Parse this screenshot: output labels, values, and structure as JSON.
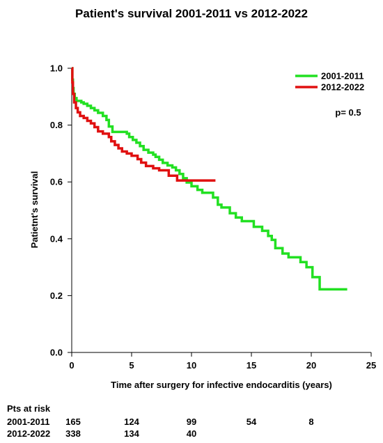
{
  "chart_data": {
    "type": "line",
    "title": "Patient's survival 2001-2011 vs 2012-2022",
    "xlabel": "Time after surgery for infective endocarditis (years)",
    "ylabel": "Patietnt's survival",
    "xlim": [
      0,
      25
    ],
    "ylim": [
      0,
      1.0
    ],
    "xticks": [
      "0",
      "5",
      "10",
      "15",
      "20",
      "25"
    ],
    "yticks": [
      "0.0",
      "0.2",
      "0.4",
      "0.6",
      "0.8",
      "1.0"
    ],
    "grid": false,
    "legend_position": "top-right",
    "annotation": "p= 0.5",
    "series": [
      {
        "name": "2001-2011",
        "color": "#22e022",
        "points": [
          [
            0,
            1.0
          ],
          [
            0.05,
            0.96
          ],
          [
            0.1,
            0.93
          ],
          [
            0.15,
            0.91
          ],
          [
            0.25,
            0.895
          ],
          [
            0.4,
            0.885
          ],
          [
            0.8,
            0.88
          ],
          [
            1.0,
            0.875
          ],
          [
            1.3,
            0.868
          ],
          [
            1.6,
            0.86
          ],
          [
            1.9,
            0.852
          ],
          [
            2.2,
            0.843
          ],
          [
            2.6,
            0.832
          ],
          [
            2.9,
            0.818
          ],
          [
            3.1,
            0.795
          ],
          [
            3.4,
            0.776
          ],
          [
            4.3,
            0.776
          ],
          [
            4.6,
            0.77
          ],
          [
            4.8,
            0.758
          ],
          [
            5.1,
            0.748
          ],
          [
            5.4,
            0.738
          ],
          [
            5.7,
            0.726
          ],
          [
            6.0,
            0.713
          ],
          [
            6.4,
            0.703
          ],
          [
            6.8,
            0.696
          ],
          [
            7.0,
            0.688
          ],
          [
            7.3,
            0.678
          ],
          [
            7.6,
            0.667
          ],
          [
            8.0,
            0.658
          ],
          [
            8.4,
            0.651
          ],
          [
            8.7,
            0.641
          ],
          [
            9.0,
            0.628
          ],
          [
            9.3,
            0.613
          ],
          [
            9.6,
            0.598
          ],
          [
            10.0,
            0.585
          ],
          [
            10.5,
            0.572
          ],
          [
            10.9,
            0.562
          ],
          [
            11.8,
            0.545
          ],
          [
            12.2,
            0.52
          ],
          [
            12.5,
            0.51
          ],
          [
            13.2,
            0.49
          ],
          [
            13.7,
            0.475
          ],
          [
            14.2,
            0.462
          ],
          [
            15.2,
            0.442
          ],
          [
            15.9,
            0.428
          ],
          [
            16.4,
            0.41
          ],
          [
            16.7,
            0.396
          ],
          [
            17.0,
            0.367
          ],
          [
            17.6,
            0.348
          ],
          [
            18.1,
            0.335
          ],
          [
            19.1,
            0.318
          ],
          [
            19.6,
            0.3
          ],
          [
            20.1,
            0.265
          ],
          [
            20.7,
            0.222
          ],
          [
            23.0,
            0.222
          ]
        ]
      },
      {
        "name": "2012-2022",
        "color": "#e01010",
        "points": [
          [
            0,
            1.0
          ],
          [
            0.05,
            0.95
          ],
          [
            0.1,
            0.91
          ],
          [
            0.2,
            0.88
          ],
          [
            0.35,
            0.86
          ],
          [
            0.5,
            0.845
          ],
          [
            0.7,
            0.832
          ],
          [
            1.0,
            0.825
          ],
          [
            1.3,
            0.815
          ],
          [
            1.6,
            0.806
          ],
          [
            1.9,
            0.793
          ],
          [
            2.2,
            0.778
          ],
          [
            2.6,
            0.77
          ],
          [
            3.1,
            0.758
          ],
          [
            3.3,
            0.743
          ],
          [
            3.6,
            0.73
          ],
          [
            3.9,
            0.718
          ],
          [
            4.2,
            0.707
          ],
          [
            4.6,
            0.7
          ],
          [
            5.0,
            0.692
          ],
          [
            5.5,
            0.68
          ],
          [
            5.8,
            0.668
          ],
          [
            6.2,
            0.656
          ],
          [
            6.8,
            0.648
          ],
          [
            7.3,
            0.641
          ],
          [
            8.1,
            0.622
          ],
          [
            8.8,
            0.605
          ],
          [
            12.0,
            0.605
          ]
        ]
      }
    ],
    "risk_table": {
      "heading": "Pts at risk",
      "times": [
        0,
        5,
        10,
        15,
        20
      ],
      "rows": [
        {
          "label": "2001-2011",
          "counts": [
            "165",
            "124",
            "99",
            "54",
            "8"
          ]
        },
        {
          "label": "2012-2022",
          "counts": [
            "338",
            "134",
            "40"
          ]
        }
      ]
    }
  }
}
